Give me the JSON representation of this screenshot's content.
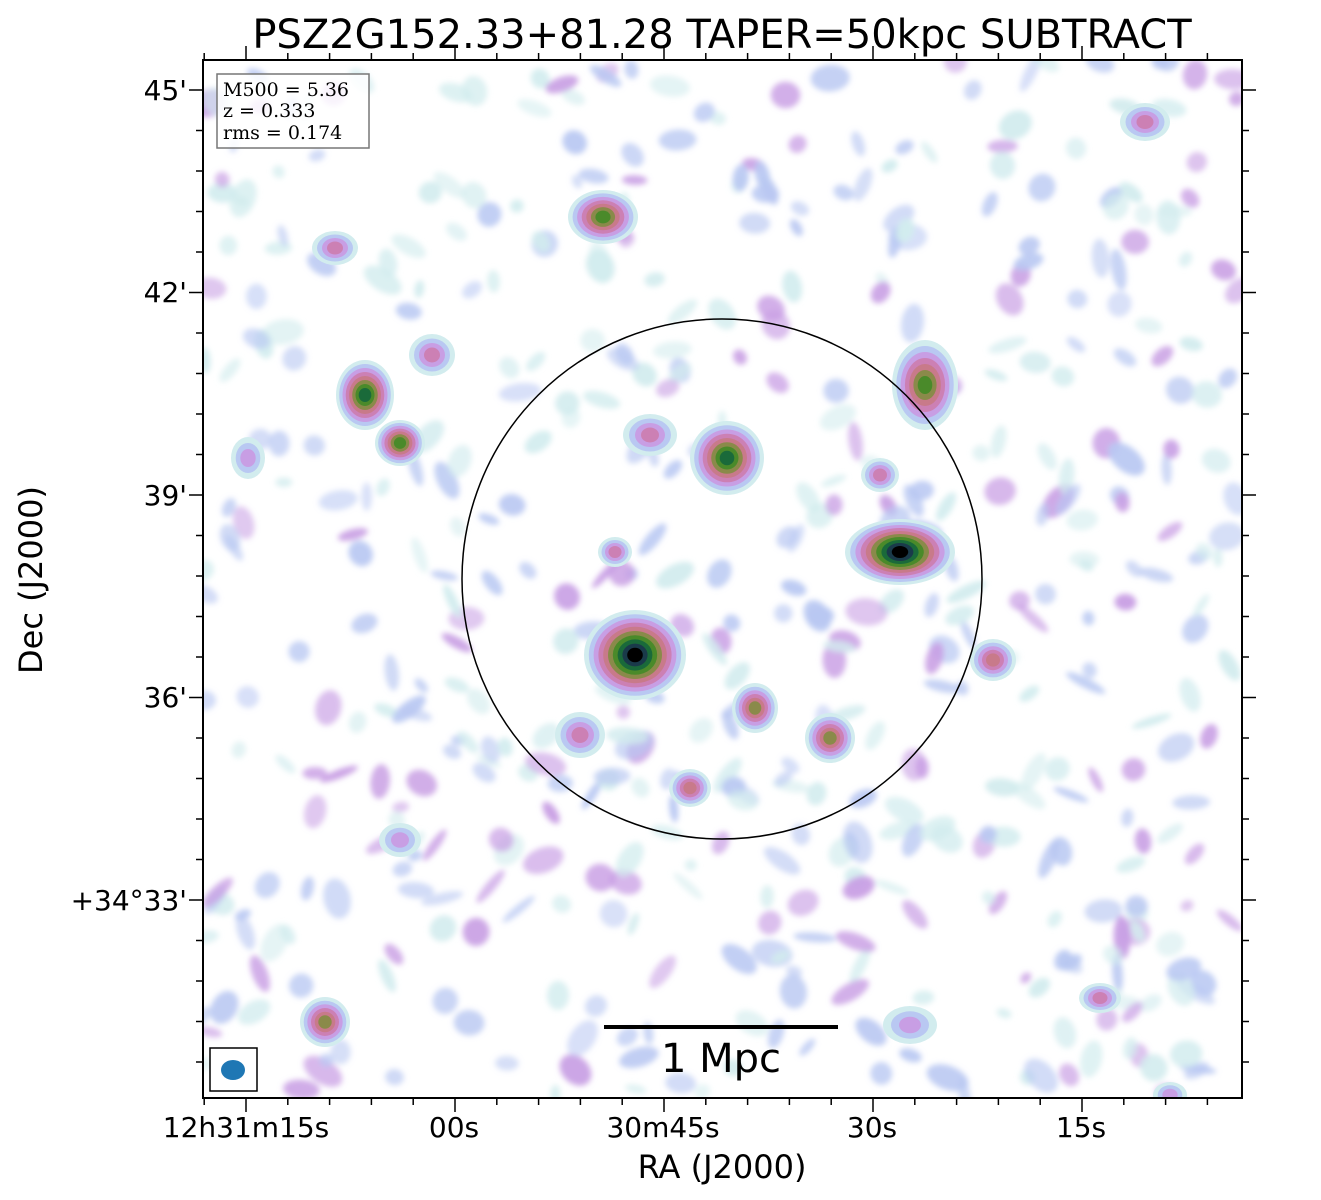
{
  "title": "PSZ2G152.33+81.28 TAPER=50kpc SUBTRACT",
  "info_box": {
    "lines": [
      "M500 = 5.36",
      "z = 0.333",
      "rms = 0.174"
    ]
  },
  "axes": {
    "xlabel": "RA (J2000)",
    "ylabel": "Dec (J2000)",
    "x_ticks": [
      "12h31m15s",
      "00s",
      "30m45s",
      "30s",
      "15s"
    ],
    "y_ticks": [
      "45'",
      "42'",
      "39'",
      "36'",
      "+34°33'"
    ]
  },
  "scalebar": {
    "label": "1 Mpc"
  },
  "colors": {
    "beam": "#1f77b4",
    "frame": "#000000",
    "colormap": [
      "#ffffff",
      "#d2ecee",
      "#b9c8f2",
      "#c89ee4",
      "#cc80b4",
      "#c87a8a",
      "#8a8a4a",
      "#4a8a2a",
      "#1a6a3a",
      "#1a3a4a",
      "#000000"
    ]
  }
}
